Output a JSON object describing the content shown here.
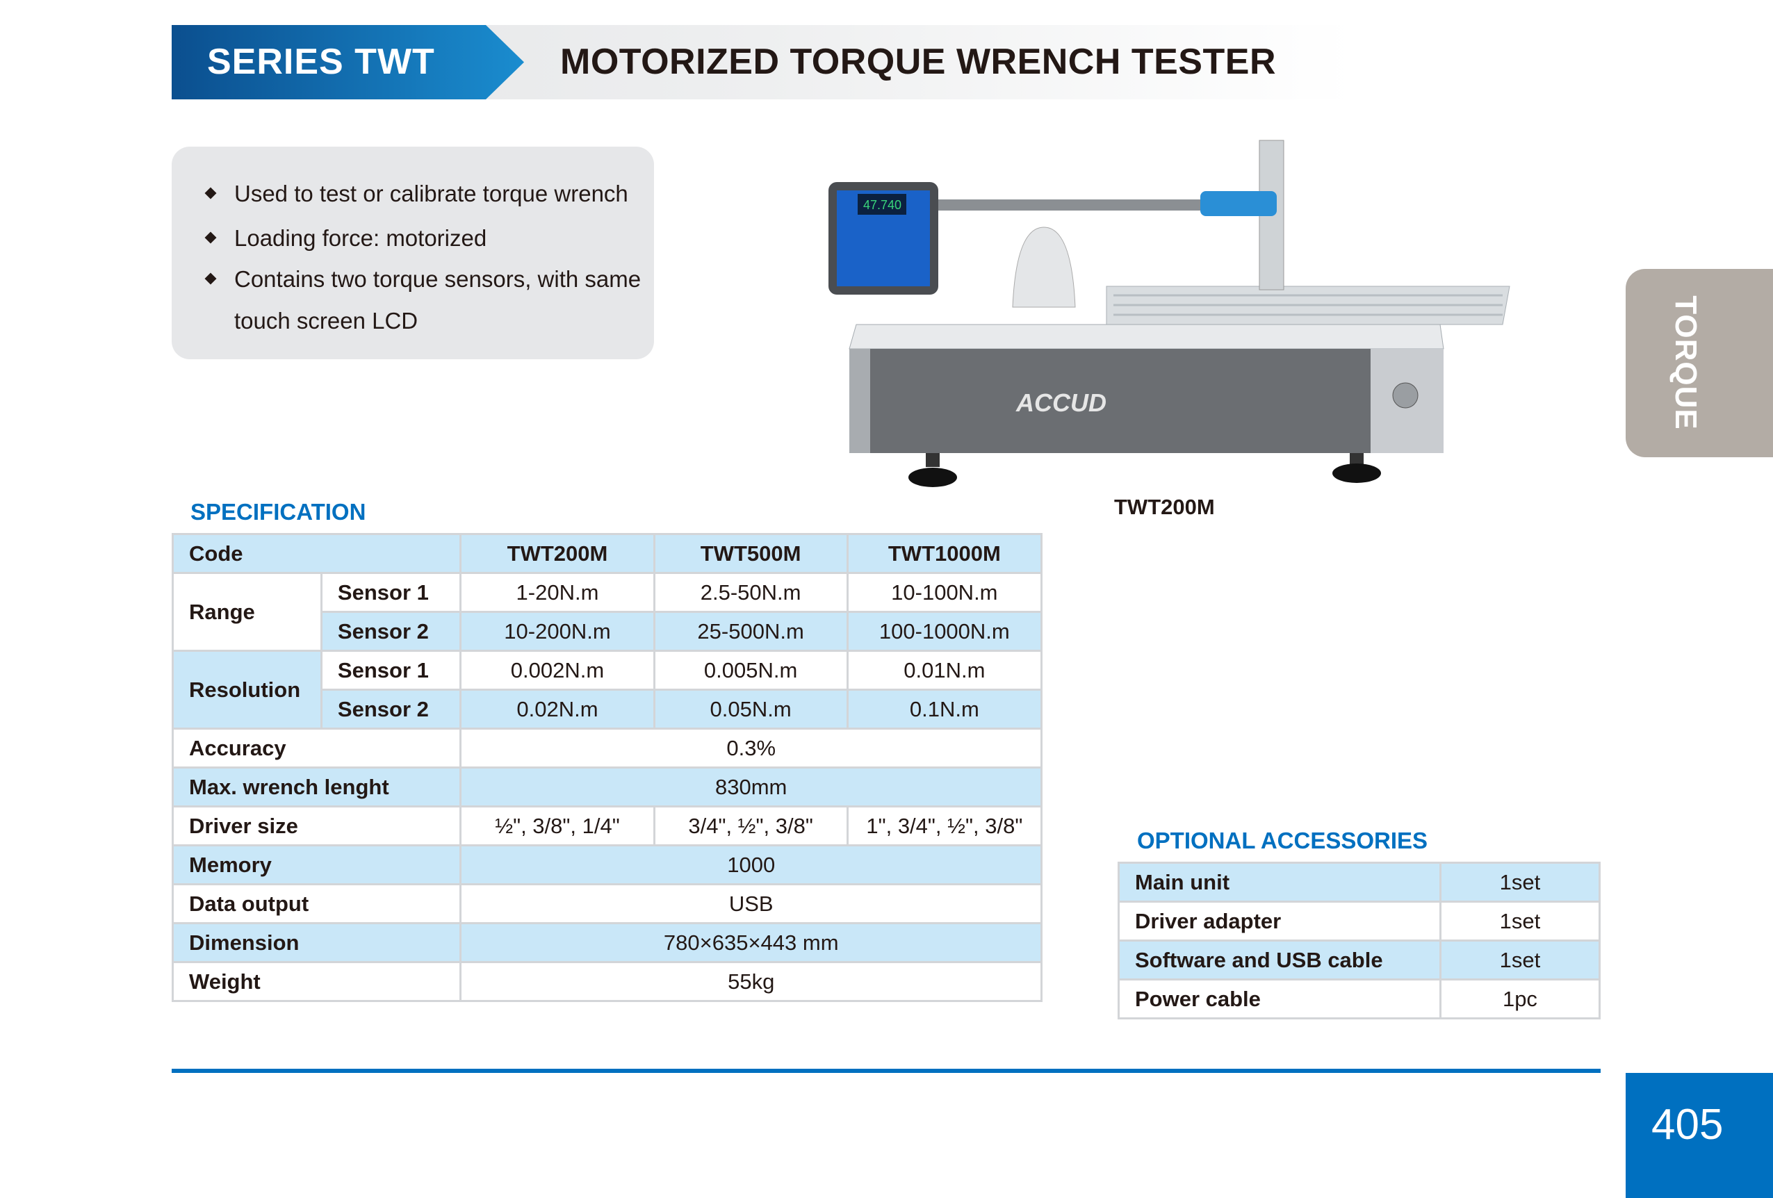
{
  "header": {
    "series": "SERIES TWT",
    "title": "MOTORIZED TORQUE WRENCH TESTER"
  },
  "features": [
    "Used to test or calibrate torque wrench",
    "Loading force:  motorized",
    "Contains two torque sensors, with same",
    "touch screen LCD"
  ],
  "photo": {
    "caption": "TWT200M",
    "brand_logo": "ACCUD",
    "display_reading": "47.740"
  },
  "side_tab": "TORQUE",
  "specification": {
    "heading": "SPECIFICATION",
    "code_label": "Code",
    "models": [
      "TWT200M",
      "TWT500M",
      "TWT1000M"
    ],
    "range_label": "Range",
    "resolution_label": "Resolution",
    "sensor1": "Sensor 1",
    "sensor2": "Sensor 2",
    "range_s1": [
      "1-20N.m",
      "2.5-50N.m",
      "10-100N.m"
    ],
    "range_s2": [
      "10-200N.m",
      "25-500N.m",
      "100-1000N.m"
    ],
    "res_s1": [
      "0.002N.m",
      "0.005N.m",
      "0.01N.m"
    ],
    "res_s2": [
      "0.02N.m",
      "0.05N.m",
      "0.1N.m"
    ],
    "accuracy": {
      "label": "Accuracy",
      "value": "0.3%"
    },
    "max_wrench": {
      "label": "Max. wrench lenght",
      "value": "830mm"
    },
    "driver_size": {
      "label": "Driver size",
      "values": [
        "½\", 3/8\", 1/4\"",
        "3/4\", ½\", 3/8\"",
        "1\", 3/4\", ½\", 3/8\""
      ]
    },
    "memory": {
      "label": "Memory",
      "value": "1000"
    },
    "data_output": {
      "label": "Data output",
      "value": "USB"
    },
    "dimension": {
      "label": "Dimension",
      "value": "780×635×443 mm"
    },
    "weight": {
      "label": "Weight",
      "value": "55kg"
    }
  },
  "accessories": {
    "heading": "OPTIONAL  ACCESSORIES",
    "rows": [
      {
        "item": "Main unit",
        "qty": "1set"
      },
      {
        "item": "Driver adapter",
        "qty": "1set"
      },
      {
        "item": "Software and USB cable",
        "qty": "1set"
      },
      {
        "item": "Power cable",
        "qty": "1pc"
      }
    ]
  },
  "page_number": "405",
  "colors": {
    "brand_blue": "#0070c0",
    "row_blue": "#c9e7f8",
    "tab_gray": "#b3aca5"
  }
}
